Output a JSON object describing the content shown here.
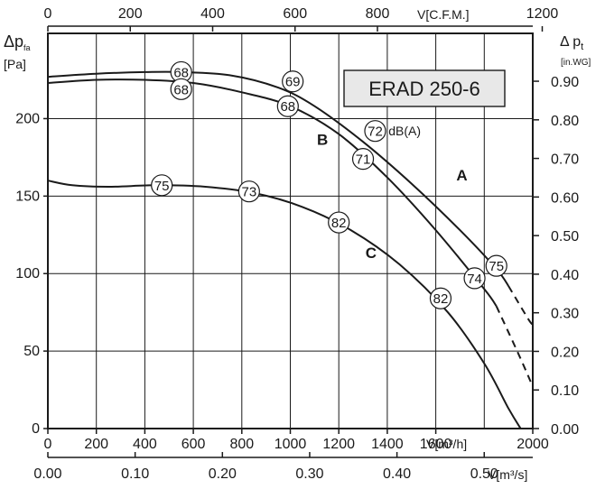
{
  "chart_data": {
    "type": "line",
    "title": "ERAD 250-6",
    "x_axis_primary": {
      "label": "V[m³/h]",
      "range": [
        0,
        2000
      ],
      "ticks": [
        "0",
        "200",
        "400",
        "600",
        "800",
        "1000",
        "1200",
        "1400",
        "1600",
        "2000"
      ]
    },
    "x_axis_secondary": {
      "label": "V[m³/s]",
      "range": [
        0,
        0.5556
      ],
      "ticks": [
        "0.00",
        "0.10",
        "0.20",
        "0.30",
        "0.40",
        "0.50"
      ],
      "tick_values": [
        0,
        0.1,
        0.2,
        0.3,
        0.4,
        0.5
      ]
    },
    "x_axis_top": {
      "label": "V[C.F.M.]",
      "range": [
        0,
        1177
      ],
      "ticks": [
        "0",
        "200",
        "400",
        "600",
        "800",
        "1200"
      ],
      "tick_values": [
        0,
        200,
        400,
        600,
        800,
        1200
      ]
    },
    "y_axis_left": {
      "label_main": "Δp",
      "label_sub": "fa",
      "unit": "[Pa]",
      "range": [
        0,
        255
      ],
      "ticks": [
        "0",
        "50",
        "100",
        "150",
        "200"
      ]
    },
    "y_axis_right": {
      "label_main": "Δ p",
      "label_sub": "t",
      "unit": "[in.WG]",
      "range": [
        0,
        1.024
      ],
      "ticks": [
        "0.00",
        "0.10",
        "0.20",
        "0.30",
        "0.40",
        "0.50",
        "0.60",
        "0.70",
        "0.80",
        "0.90"
      ],
      "tick_values": [
        0,
        0.1,
        0.2,
        0.3,
        0.4,
        0.5,
        0.6,
        0.7,
        0.8,
        0.9
      ]
    },
    "grid": true,
    "series": [
      {
        "name": "A",
        "solid": [
          [
            0,
            227
          ],
          [
            200,
            229
          ],
          [
            400,
            230
          ],
          [
            550,
            230
          ],
          [
            750,
            228
          ],
          [
            950,
            220
          ],
          [
            1100,
            208
          ],
          [
            1300,
            185
          ],
          [
            1500,
            158
          ],
          [
            1700,
            128
          ],
          [
            1850,
            103
          ],
          [
            1900,
            92
          ]
        ],
        "dashed": [
          [
            1900,
            92
          ],
          [
            1980,
            71
          ],
          [
            2000,
            67
          ]
        ],
        "db_markers": [
          {
            "x": 550,
            "y": 230,
            "label": "68"
          },
          {
            "x": 1010,
            "y": 224,
            "label": "69"
          },
          {
            "x": 1350,
            "y": 192,
            "label": "72"
          },
          {
            "x": 1850,
            "y": 105,
            "label": "75"
          }
        ]
      },
      {
        "name": "B",
        "solid": [
          [
            0,
            223
          ],
          [
            200,
            225
          ],
          [
            400,
            225
          ],
          [
            600,
            223
          ],
          [
            800,
            217
          ],
          [
            1000,
            208
          ],
          [
            1200,
            190
          ],
          [
            1400,
            162
          ],
          [
            1600,
            128
          ],
          [
            1800,
            90
          ],
          [
            1850,
            79
          ]
        ],
        "dashed": [
          [
            1850,
            79
          ],
          [
            1950,
            45
          ],
          [
            2000,
            27
          ]
        ],
        "db_markers": [
          {
            "x": 550,
            "y": 219,
            "label": "68"
          },
          {
            "x": 990,
            "y": 208,
            "label": "68"
          },
          {
            "x": 1300,
            "y": 174,
            "label": "71"
          },
          {
            "x": 1760,
            "y": 97,
            "label": "74"
          }
        ]
      },
      {
        "name": "C",
        "solid": [
          [
            0,
            160
          ],
          [
            100,
            157
          ],
          [
            250,
            156
          ],
          [
            450,
            157
          ],
          [
            650,
            156
          ],
          [
            850,
            152
          ],
          [
            1050,
            143
          ],
          [
            1250,
            128
          ],
          [
            1450,
            106
          ],
          [
            1650,
            75
          ],
          [
            1800,
            42
          ],
          [
            1900,
            13
          ],
          [
            1950,
            0
          ]
        ],
        "dashed": [],
        "db_markers": [
          {
            "x": 470,
            "y": 157,
            "label": "75"
          },
          {
            "x": 830,
            "y": 153,
            "label": "73"
          },
          {
            "x": 1200,
            "y": 133,
            "label": "82"
          },
          {
            "x": 1620,
            "y": 84,
            "label": "82"
          }
        ]
      }
    ],
    "annotations": {
      "db_unit": {
        "text": "dB(A)",
        "x": 1405,
        "y": 192
      },
      "label_A": {
        "text": "A",
        "x": 1685,
        "y": 160
      },
      "label_B": {
        "text": "B",
        "x": 1110,
        "y": 183
      },
      "label_C": {
        "text": "C",
        "x": 1310,
        "y": 110
      }
    }
  }
}
